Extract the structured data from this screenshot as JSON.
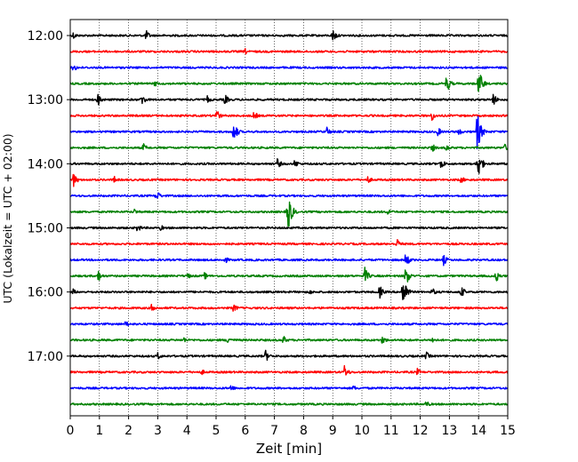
{
  "chart_data": {
    "type": "line",
    "title": "",
    "xlabel": "Zeit  [min]",
    "ylabel": "UTC (Lokalzeit = UTC + 02:00)",
    "xlim": [
      0,
      15
    ],
    "x_ticks": [
      0,
      1,
      2,
      3,
      4,
      5,
      6,
      7,
      8,
      9,
      10,
      11,
      12,
      13,
      14,
      15
    ],
    "x_tick_labels": [
      "0",
      "1",
      "2",
      "3",
      "4",
      "5",
      "6",
      "7",
      "8",
      "9",
      "10",
      "11",
      "12",
      "13",
      "14",
      "15"
    ],
    "y_tick_labels": [
      "12:00",
      "13:00",
      "14:00",
      "15:00",
      "16:00",
      "17:00"
    ],
    "grid": "vertical dotted at each minute",
    "trace_interval_min": 15,
    "trace_colors": [
      "#000000",
      "#ff0000",
      "#0000ff",
      "#008000"
    ],
    "traces": [
      {
        "start": "12:00",
        "color": "#000000",
        "events": [
          {
            "t": 0.1,
            "a": 0.5
          },
          {
            "t": 2.6,
            "a": 0.7
          },
          {
            "t": 9.0,
            "a": 0.9
          }
        ]
      },
      {
        "start": "12:15",
        "color": "#ff0000",
        "events": [
          {
            "t": 6.0,
            "a": 0.4
          }
        ]
      },
      {
        "start": "12:30",
        "color": "#0000ff",
        "events": [
          {
            "t": 0.1,
            "a": 0.6
          }
        ]
      },
      {
        "start": "12:45",
        "color": "#008000",
        "events": [
          {
            "t": 2.9,
            "a": 0.4
          },
          {
            "t": 12.9,
            "a": 1.2
          },
          {
            "t": 14.0,
            "a": 2.0
          }
        ]
      },
      {
        "start": "13:00",
        "color": "#000000",
        "events": [
          {
            "t": 0.95,
            "a": 0.9
          },
          {
            "t": 2.45,
            "a": 0.8
          },
          {
            "t": 4.7,
            "a": 0.5
          },
          {
            "t": 5.3,
            "a": 0.7
          },
          {
            "t": 14.5,
            "a": 0.8
          }
        ]
      },
      {
        "start": "13:15",
        "color": "#ff0000",
        "events": [
          {
            "t": 5.0,
            "a": 0.9
          },
          {
            "t": 6.3,
            "a": 0.6
          },
          {
            "t": 12.4,
            "a": 0.7
          }
        ]
      },
      {
        "start": "13:30",
        "color": "#0000ff",
        "events": [
          {
            "t": 5.6,
            "a": 1.4
          },
          {
            "t": 8.8,
            "a": 0.6
          },
          {
            "t": 12.6,
            "a": 0.6
          },
          {
            "t": 13.3,
            "a": 0.6
          },
          {
            "t": 13.95,
            "a": 2.6
          }
        ]
      },
      {
        "start": "13:45",
        "color": "#008000",
        "events": [
          {
            "t": 2.5,
            "a": 0.6
          },
          {
            "t": 12.4,
            "a": 0.6
          },
          {
            "t": 12.9,
            "a": 0.5
          },
          {
            "t": 14.9,
            "a": 0.5
          }
        ]
      },
      {
        "start": "14:00",
        "color": "#000000",
        "events": [
          {
            "t": 7.1,
            "a": 0.7
          },
          {
            "t": 7.7,
            "a": 0.6
          },
          {
            "t": 12.7,
            "a": 0.8
          },
          {
            "t": 13.95,
            "a": 2.4
          }
        ]
      },
      {
        "start": "14:15",
        "color": "#ff0000",
        "events": [
          {
            "t": 0.1,
            "a": 1.0
          },
          {
            "t": 1.5,
            "a": 0.5
          },
          {
            "t": 10.2,
            "a": 0.5
          },
          {
            "t": 13.4,
            "a": 0.5
          }
        ]
      },
      {
        "start": "14:30",
        "color": "#0000ff",
        "events": [
          {
            "t": 2.95,
            "a": 0.8
          }
        ]
      },
      {
        "start": "14:45",
        "color": "#008000",
        "events": [
          {
            "t": 2.2,
            "a": 0.4
          },
          {
            "t": 7.45,
            "a": 2.8
          },
          {
            "t": 10.9,
            "a": 0.5
          }
        ]
      },
      {
        "start": "15:00",
        "color": "#000000",
        "events": [
          {
            "t": 2.3,
            "a": 0.6
          },
          {
            "t": 3.1,
            "a": 0.4
          }
        ]
      },
      {
        "start": "15:15",
        "color": "#ff0000",
        "events": [
          {
            "t": 11.2,
            "a": 0.7
          }
        ]
      },
      {
        "start": "15:30",
        "color": "#0000ff",
        "events": [
          {
            "t": 5.3,
            "a": 0.5
          },
          {
            "t": 11.5,
            "a": 1.0
          },
          {
            "t": 12.8,
            "a": 0.7
          }
        ]
      },
      {
        "start": "15:45",
        "color": "#008000",
        "events": [
          {
            "t": 0.95,
            "a": 0.8
          },
          {
            "t": 4.0,
            "a": 0.5
          },
          {
            "t": 4.6,
            "a": 0.5
          },
          {
            "t": 10.1,
            "a": 1.1
          },
          {
            "t": 11.5,
            "a": 1.4
          },
          {
            "t": 14.6,
            "a": 0.8
          }
        ]
      },
      {
        "start": "16:00",
        "color": "#000000",
        "events": [
          {
            "t": 0.1,
            "a": 0.4
          },
          {
            "t": 8.2,
            "a": 0.4
          },
          {
            "t": 10.6,
            "a": 0.9
          },
          {
            "t": 11.4,
            "a": 2.4
          },
          {
            "t": 12.4,
            "a": 0.6
          },
          {
            "t": 13.4,
            "a": 0.8
          }
        ]
      },
      {
        "start": "16:15",
        "color": "#ff0000",
        "events": [
          {
            "t": 2.8,
            "a": 0.7
          },
          {
            "t": 5.6,
            "a": 0.6
          }
        ]
      },
      {
        "start": "16:30",
        "color": "#0000ff",
        "events": [
          {
            "t": 1.9,
            "a": 0.5
          }
        ]
      },
      {
        "start": "16:45",
        "color": "#008000",
        "events": [
          {
            "t": 3.9,
            "a": 0.4
          },
          {
            "t": 5.4,
            "a": 0.6
          },
          {
            "t": 7.3,
            "a": 0.6
          },
          {
            "t": 10.7,
            "a": 0.6
          },
          {
            "t": 12.4,
            "a": 0.5
          }
        ]
      },
      {
        "start": "17:00",
        "color": "#000000",
        "events": [
          {
            "t": 3.0,
            "a": 0.5
          },
          {
            "t": 6.7,
            "a": 0.8
          },
          {
            "t": 12.2,
            "a": 0.6
          }
        ]
      },
      {
        "start": "17:15",
        "color": "#ff0000",
        "events": [
          {
            "t": 4.5,
            "a": 0.4
          },
          {
            "t": 9.4,
            "a": 0.9
          },
          {
            "t": 11.9,
            "a": 0.5
          }
        ]
      },
      {
        "start": "17:30",
        "color": "#0000ff",
        "events": [
          {
            "t": 5.5,
            "a": 0.5
          },
          {
            "t": 9.7,
            "a": 0.4
          }
        ]
      },
      {
        "start": "17:45",
        "color": "#008000",
        "events": [
          {
            "t": 12.2,
            "a": 0.5
          }
        ]
      }
    ]
  }
}
